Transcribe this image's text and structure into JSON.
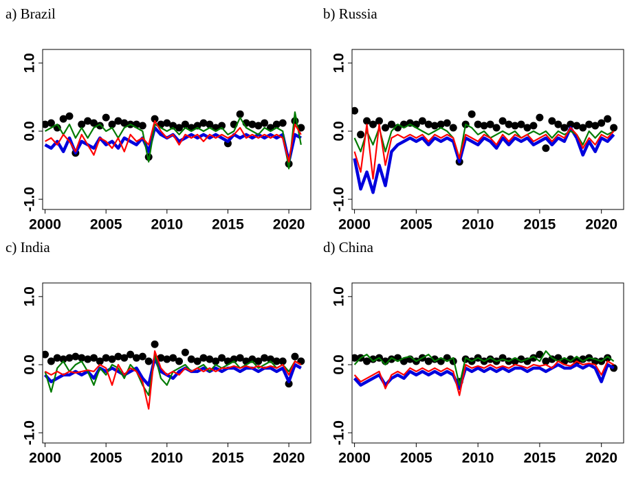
{
  "chart_data": [
    {
      "type": "line",
      "title": "a) Brazil",
      "x": [
        2000,
        2000.5,
        2001,
        2001.5,
        2002,
        2002.5,
        2003,
        2003.5,
        2004,
        2004.5,
        2005,
        2005.5,
        2006,
        2006.5,
        2007,
        2007.5,
        2008,
        2008.5,
        2009,
        2009.5,
        2010,
        2010.5,
        2011,
        2011.5,
        2012,
        2012.5,
        2013,
        2013.5,
        2014,
        2014.5,
        2015,
        2015.5,
        2016,
        2016.5,
        2017,
        2017.5,
        2018,
        2018.5,
        2019,
        2019.5,
        2020,
        2020.5,
        2021
      ],
      "xlim": [
        1999.8,
        2021.8
      ],
      "xticks": [
        2000,
        2005,
        2010,
        2015,
        2020
      ],
      "ylim": [
        -1.15,
        1.2
      ],
      "yticks": [
        {
          "value": 1,
          "label": "1.0"
        },
        {
          "value": 0,
          "label": "0.0"
        },
        {
          "value": -1,
          "label": "-1.0"
        }
      ],
      "series": [
        {
          "mode": "markers",
          "color": "#000000",
          "values": [
            0.1,
            0.12,
            0.05,
            0.18,
            0.22,
            -0.32,
            0.1,
            0.15,
            0.12,
            0.08,
            0.2,
            0.1,
            0.15,
            0.12,
            0.1,
            0.1,
            0.08,
            -0.38,
            0.18,
            0.1,
            0.12,
            0.08,
            0.05,
            0.1,
            0.05,
            0.08,
            0.12,
            0.1,
            0.05,
            0.08,
            -0.18,
            0.1,
            0.25,
            0.12,
            0.1,
            0.08,
            0.12,
            0.05,
            0.1,
            0.12,
            -0.48,
            0.15,
            0.05
          ]
        },
        {
          "mode": "lines",
          "color": "#0000dd",
          "values": [
            -0.2,
            -0.25,
            -0.15,
            -0.3,
            -0.1,
            -0.32,
            -0.15,
            -0.2,
            -0.25,
            -0.1,
            -0.2,
            -0.15,
            -0.25,
            -0.1,
            -0.15,
            -0.2,
            -0.1,
            -0.3,
            0.05,
            -0.05,
            -0.1,
            -0.05,
            -0.15,
            -0.1,
            -0.05,
            -0.1,
            -0.05,
            -0.1,
            -0.05,
            -0.1,
            -0.15,
            -0.05,
            -0.1,
            -0.05,
            -0.1,
            -0.05,
            -0.1,
            -0.05,
            -0.1,
            -0.05,
            -0.45,
            -0.05,
            -0.1
          ]
        },
        {
          "mode": "lines",
          "color": "#007a00",
          "values": [
            0.0,
            0.05,
            0.1,
            -0.05,
            0.1,
            -0.1,
            0.05,
            -0.1,
            0.05,
            0.1,
            0.0,
            0.05,
            -0.1,
            0.05,
            0.1,
            0.05,
            0.0,
            -0.45,
            0.1,
            0.05,
            0.0,
            0.05,
            -0.05,
            0.05,
            0.0,
            0.05,
            0.0,
            0.05,
            0.0,
            0.05,
            -0.05,
            0.0,
            0.2,
            0.05,
            0.0,
            -0.05,
            0.05,
            0.0,
            0.05,
            0.0,
            -0.55,
            0.28,
            -0.2
          ]
        },
        {
          "mode": "lines",
          "color": "#ff0000",
          "values": [
            -0.15,
            -0.1,
            -0.2,
            -0.05,
            -0.15,
            -0.3,
            -0.05,
            -0.2,
            -0.35,
            -0.1,
            -0.15,
            -0.25,
            -0.1,
            -0.3,
            -0.05,
            -0.15,
            -0.1,
            -0.2,
            0.15,
            0.0,
            -0.1,
            -0.05,
            -0.2,
            -0.05,
            -0.1,
            -0.05,
            -0.15,
            -0.05,
            -0.1,
            -0.05,
            -0.1,
            -0.05,
            0.05,
            -0.1,
            -0.05,
            -0.1,
            -0.05,
            -0.1,
            -0.05,
            -0.1,
            -0.45,
            0.1,
            -0.05
          ]
        }
      ]
    },
    {
      "type": "line",
      "title": "b) Russia",
      "x": [
        2000,
        2000.5,
        2001,
        2001.5,
        2002,
        2002.5,
        2003,
        2003.5,
        2004,
        2004.5,
        2005,
        2005.5,
        2006,
        2006.5,
        2007,
        2007.5,
        2008,
        2008.5,
        2009,
        2009.5,
        2010,
        2010.5,
        2011,
        2011.5,
        2012,
        2012.5,
        2013,
        2013.5,
        2014,
        2014.5,
        2015,
        2015.5,
        2016,
        2016.5,
        2017,
        2017.5,
        2018,
        2018.5,
        2019,
        2019.5,
        2020,
        2020.5,
        2021
      ],
      "xlim": [
        1999.8,
        2021.8
      ],
      "xticks": [
        2000,
        2005,
        2010,
        2015,
        2020
      ],
      "ylim": [
        -1.15,
        1.2
      ],
      "yticks": [
        {
          "value": 1,
          "label": "1.0"
        },
        {
          "value": 0,
          "label": "0.0"
        },
        {
          "value": -1,
          "label": "-1.0"
        }
      ],
      "series": [
        {
          "mode": "markers",
          "color": "#000000",
          "values": [
            0.3,
            -0.05,
            0.15,
            0.1,
            0.15,
            0.05,
            0.1,
            0.05,
            0.1,
            0.12,
            0.1,
            0.15,
            0.1,
            0.08,
            0.1,
            0.12,
            0.05,
            -0.45,
            0.1,
            0.25,
            0.1,
            0.08,
            0.1,
            0.05,
            0.15,
            0.1,
            0.08,
            0.1,
            0.05,
            0.08,
            0.2,
            -0.25,
            0.15,
            0.1,
            0.05,
            0.1,
            0.08,
            0.05,
            0.1,
            0.08,
            0.12,
            0.18,
            0.05
          ]
        },
        {
          "mode": "lines",
          "color": "#0000dd",
          "values": [
            -0.4,
            -0.85,
            -0.6,
            -0.9,
            -0.5,
            -0.8,
            -0.3,
            -0.2,
            -0.15,
            -0.1,
            -0.15,
            -0.1,
            -0.2,
            -0.1,
            -0.15,
            -0.1,
            -0.15,
            -0.45,
            -0.1,
            -0.15,
            -0.2,
            -0.1,
            -0.15,
            -0.25,
            -0.1,
            -0.2,
            -0.1,
            -0.15,
            -0.1,
            -0.2,
            -0.15,
            -0.1,
            -0.2,
            -0.1,
            -0.15,
            0.05,
            -0.1,
            -0.35,
            -0.15,
            -0.3,
            -0.1,
            -0.15,
            -0.05
          ]
        },
        {
          "mode": "lines",
          "color": "#007a00",
          "values": [
            -0.1,
            -0.3,
            0.0,
            -0.2,
            0.05,
            -0.3,
            0.0,
            0.1,
            0.05,
            0.1,
            0.05,
            0.0,
            -0.05,
            0.0,
            0.05,
            0.0,
            -0.1,
            -0.4,
            0.1,
            0.05,
            -0.05,
            0.0,
            -0.1,
            -0.05,
            0.0,
            -0.05,
            0.0,
            -0.1,
            -0.05,
            0.0,
            -0.05,
            0.0,
            -0.1,
            0.0,
            -0.05,
            0.0,
            -0.05,
            -0.2,
            0.0,
            -0.1,
            0.0,
            -0.05,
            0.0
          ]
        },
        {
          "mode": "lines",
          "color": "#ff0000",
          "values": [
            -0.3,
            -0.6,
            0.1,
            -0.7,
            0.1,
            -0.5,
            -0.1,
            -0.05,
            -0.1,
            -0.05,
            -0.1,
            -0.05,
            -0.15,
            -0.05,
            -0.1,
            -0.05,
            -0.1,
            -0.4,
            -0.05,
            -0.1,
            -0.15,
            -0.05,
            -0.1,
            -0.2,
            -0.05,
            -0.15,
            -0.05,
            -0.1,
            -0.05,
            -0.15,
            -0.1,
            -0.05,
            -0.15,
            -0.05,
            -0.1,
            0.05,
            -0.05,
            -0.25,
            -0.1,
            -0.2,
            -0.05,
            -0.1,
            0.0
          ]
        }
      ]
    },
    {
      "type": "line",
      "title": "c) India",
      "x": [
        2000,
        2000.5,
        2001,
        2001.5,
        2002,
        2002.5,
        2003,
        2003.5,
        2004,
        2004.5,
        2005,
        2005.5,
        2006,
        2006.5,
        2007,
        2007.5,
        2008,
        2008.5,
        2009,
        2009.5,
        2010,
        2010.5,
        2011,
        2011.5,
        2012,
        2012.5,
        2013,
        2013.5,
        2014,
        2014.5,
        2015,
        2015.5,
        2016,
        2016.5,
        2017,
        2017.5,
        2018,
        2018.5,
        2019,
        2019.5,
        2020,
        2020.5,
        2021
      ],
      "xlim": [
        1999.8,
        2021.8
      ],
      "xticks": [
        2000,
        2005,
        2010,
        2015,
        2020
      ],
      "ylim": [
        -1.15,
        1.2
      ],
      "yticks": [
        {
          "value": 1,
          "label": "1.0"
        },
        {
          "value": 0,
          "label": "0.0"
        },
        {
          "value": -1,
          "label": "-1.0"
        }
      ],
      "series": [
        {
          "mode": "markers",
          "color": "#000000",
          "values": [
            0.15,
            0.05,
            0.1,
            0.08,
            0.1,
            0.12,
            0.1,
            0.08,
            0.1,
            0.05,
            0.1,
            0.08,
            0.12,
            0.1,
            0.15,
            0.1,
            0.12,
            0.05,
            0.3,
            0.1,
            0.08,
            0.1,
            0.05,
            0.18,
            0.08,
            0.05,
            0.1,
            0.08,
            0.05,
            0.1,
            0.05,
            0.08,
            0.1,
            0.05,
            0.08,
            0.05,
            0.1,
            0.08,
            0.05,
            0.05,
            -0.28,
            0.12,
            0.05
          ]
        },
        {
          "mode": "lines",
          "color": "#0000dd",
          "values": [
            -0.15,
            -0.25,
            -0.2,
            -0.15,
            -0.15,
            -0.1,
            -0.15,
            -0.1,
            -0.2,
            -0.05,
            -0.1,
            -0.05,
            -0.1,
            -0.15,
            -0.1,
            -0.05,
            -0.2,
            -0.3,
            0.1,
            -0.1,
            -0.15,
            -0.2,
            -0.1,
            -0.05,
            -0.1,
            -0.1,
            -0.05,
            -0.1,
            -0.05,
            -0.1,
            -0.05,
            -0.05,
            -0.1,
            -0.05,
            -0.05,
            -0.1,
            -0.05,
            -0.05,
            -0.1,
            -0.05,
            -0.25,
            0.0,
            -0.05
          ]
        },
        {
          "mode": "lines",
          "color": "#007a00",
          "values": [
            -0.1,
            -0.4,
            -0.05,
            0.05,
            -0.1,
            0.0,
            0.05,
            -0.1,
            -0.3,
            -0.05,
            -0.15,
            0.0,
            -0.05,
            -0.2,
            0.0,
            -0.1,
            -0.3,
            -0.45,
            0.15,
            -0.2,
            -0.3,
            -0.1,
            -0.05,
            0.0,
            -0.1,
            -0.05,
            0.0,
            -0.1,
            0.0,
            -0.05,
            0.0,
            0.05,
            -0.05,
            0.0,
            0.05,
            -0.05,
            0.0,
            0.05,
            -0.05,
            0.0,
            -0.1,
            0.05,
            0.0
          ]
        },
        {
          "mode": "lines",
          "color": "#ff0000",
          "values": [
            -0.1,
            -0.15,
            -0.1,
            -0.15,
            -0.1,
            -0.12,
            -0.1,
            -0.08,
            -0.1,
            0.0,
            -0.05,
            -0.3,
            0.0,
            -0.15,
            -0.05,
            -0.1,
            -0.25,
            -0.65,
            0.2,
            -0.05,
            -0.15,
            -0.1,
            -0.15,
            -0.05,
            -0.1,
            -0.05,
            -0.1,
            -0.05,
            -0.1,
            -0.05,
            -0.05,
            -0.02,
            -0.05,
            -0.02,
            -0.05,
            -0.02,
            -0.05,
            -0.02,
            -0.05,
            0.0,
            -0.15,
            0.05,
            0.0
          ]
        }
      ]
    },
    {
      "type": "line",
      "title": "d) China",
      "x": [
        2000,
        2000.5,
        2001,
        2001.5,
        2002,
        2002.5,
        2003,
        2003.5,
        2004,
        2004.5,
        2005,
        2005.5,
        2006,
        2006.5,
        2007,
        2007.5,
        2008,
        2008.5,
        2009,
        2009.5,
        2010,
        2010.5,
        2011,
        2011.5,
        2012,
        2012.5,
        2013,
        2013.5,
        2014,
        2014.5,
        2015,
        2015.5,
        2016,
        2016.5,
        2017,
        2017.5,
        2018,
        2018.5,
        2019,
        2019.5,
        2020,
        2020.5,
        2021
      ],
      "xlim": [
        1999.8,
        2021.8
      ],
      "xticks": [
        2000,
        2005,
        2010,
        2015,
        2020
      ],
      "ylim": [
        -1.15,
        1.2
      ],
      "yticks": [
        {
          "value": 1,
          "label": "1.0"
        },
        {
          "value": 0,
          "label": "0.0"
        },
        {
          "value": -1,
          "label": "-1.0"
        }
      ],
      "series": [
        {
          "mode": "markers",
          "color": "#000000",
          "values": [
            0.1,
            0.1,
            0.05,
            0.08,
            0.1,
            0.05,
            0.08,
            0.1,
            0.05,
            0.08,
            0.05,
            0.1,
            0.05,
            0.08,
            0.05,
            0.1,
            0.05,
            -0.25,
            0.08,
            0.05,
            0.1,
            0.05,
            0.08,
            0.05,
            0.1,
            0.05,
            0.05,
            0.08,
            0.05,
            0.1,
            0.15,
            0.05,
            0.08,
            0.1,
            0.05,
            0.08,
            0.05,
            0.08,
            0.1,
            0.05,
            0.05,
            0.1,
            -0.05
          ]
        },
        {
          "mode": "lines",
          "color": "#0000dd",
          "values": [
            -0.2,
            -0.3,
            -0.25,
            -0.2,
            -0.15,
            -0.3,
            -0.2,
            -0.15,
            -0.2,
            -0.1,
            -0.15,
            -0.1,
            -0.15,
            -0.1,
            -0.15,
            -0.1,
            -0.15,
            -0.35,
            -0.05,
            -0.1,
            -0.05,
            -0.1,
            -0.05,
            -0.1,
            -0.05,
            -0.1,
            -0.05,
            -0.05,
            -0.1,
            -0.05,
            -0.05,
            -0.1,
            -0.05,
            0.0,
            -0.05,
            -0.05,
            0.0,
            -0.05,
            0.0,
            -0.05,
            -0.25,
            0.0,
            -0.05
          ]
        },
        {
          "mode": "lines",
          "color": "#007a00",
          "values": [
            0.0,
            0.1,
            0.15,
            0.05,
            0.1,
            0.0,
            0.1,
            0.05,
            0.1,
            0.12,
            0.05,
            0.1,
            0.15,
            0.05,
            0.1,
            0.05,
            0.1,
            -0.3,
            0.1,
            0.05,
            0.1,
            0.05,
            0.1,
            0.05,
            0.08,
            0.05,
            0.1,
            0.05,
            0.08,
            0.12,
            0.05,
            0.2,
            0.1,
            0.05,
            0.1,
            0.05,
            0.12,
            0.05,
            0.1,
            0.08,
            0.05,
            0.12,
            0.05
          ]
        },
        {
          "mode": "lines",
          "color": "#ff0000",
          "values": [
            -0.15,
            -0.25,
            -0.2,
            -0.15,
            -0.1,
            -0.35,
            -0.15,
            -0.1,
            -0.15,
            -0.05,
            -0.1,
            -0.05,
            -0.1,
            -0.05,
            -0.1,
            -0.05,
            -0.1,
            -0.45,
            0.0,
            -0.05,
            -0.02,
            -0.05,
            0.0,
            -0.05,
            -0.02,
            -0.05,
            0.0,
            -0.02,
            -0.05,
            0.0,
            -0.02,
            0.0,
            -0.05,
            0.05,
            0.0,
            -0.02,
            0.05,
            0.0,
            0.02,
            0.0,
            -0.15,
            0.05,
            0.0
          ]
        }
      ]
    }
  ]
}
